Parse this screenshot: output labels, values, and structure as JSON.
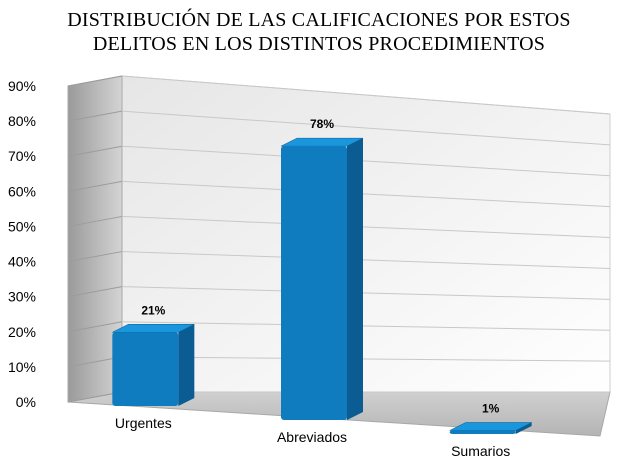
{
  "chart_data": {
    "type": "bar",
    "title_lines": [
      "DISTRIBUCIÓN DE LAS CALIFICACIONES POR ESTOS",
      "DELITOS EN  LOS DISTINTOS PROCEDIMIENTOS"
    ],
    "categories": [
      "Urgentes",
      "Abreviados",
      "Sumarios"
    ],
    "values": [
      21,
      78,
      1
    ],
    "data_labels": [
      "21%",
      "78%",
      "1%"
    ],
    "ylim": [
      0,
      90
    ],
    "yticks": [
      0,
      10,
      20,
      30,
      40,
      50,
      60,
      70,
      80,
      90
    ],
    "ytick_labels": [
      "0%",
      "10%",
      "20%",
      "30%",
      "40%",
      "50%",
      "60%",
      "70%",
      "80%",
      "90%"
    ],
    "grid": true,
    "legend": "none",
    "style": "3d",
    "colors": {
      "bar_front": "#0f7cc0",
      "bar_side": "#0a5c92",
      "bar_top": "#1a96dd",
      "wall": "#f3f3f3",
      "side_wall": "#bdbdbd",
      "floor": "#c8c8c8",
      "grid": "#c8c8c8"
    }
  }
}
